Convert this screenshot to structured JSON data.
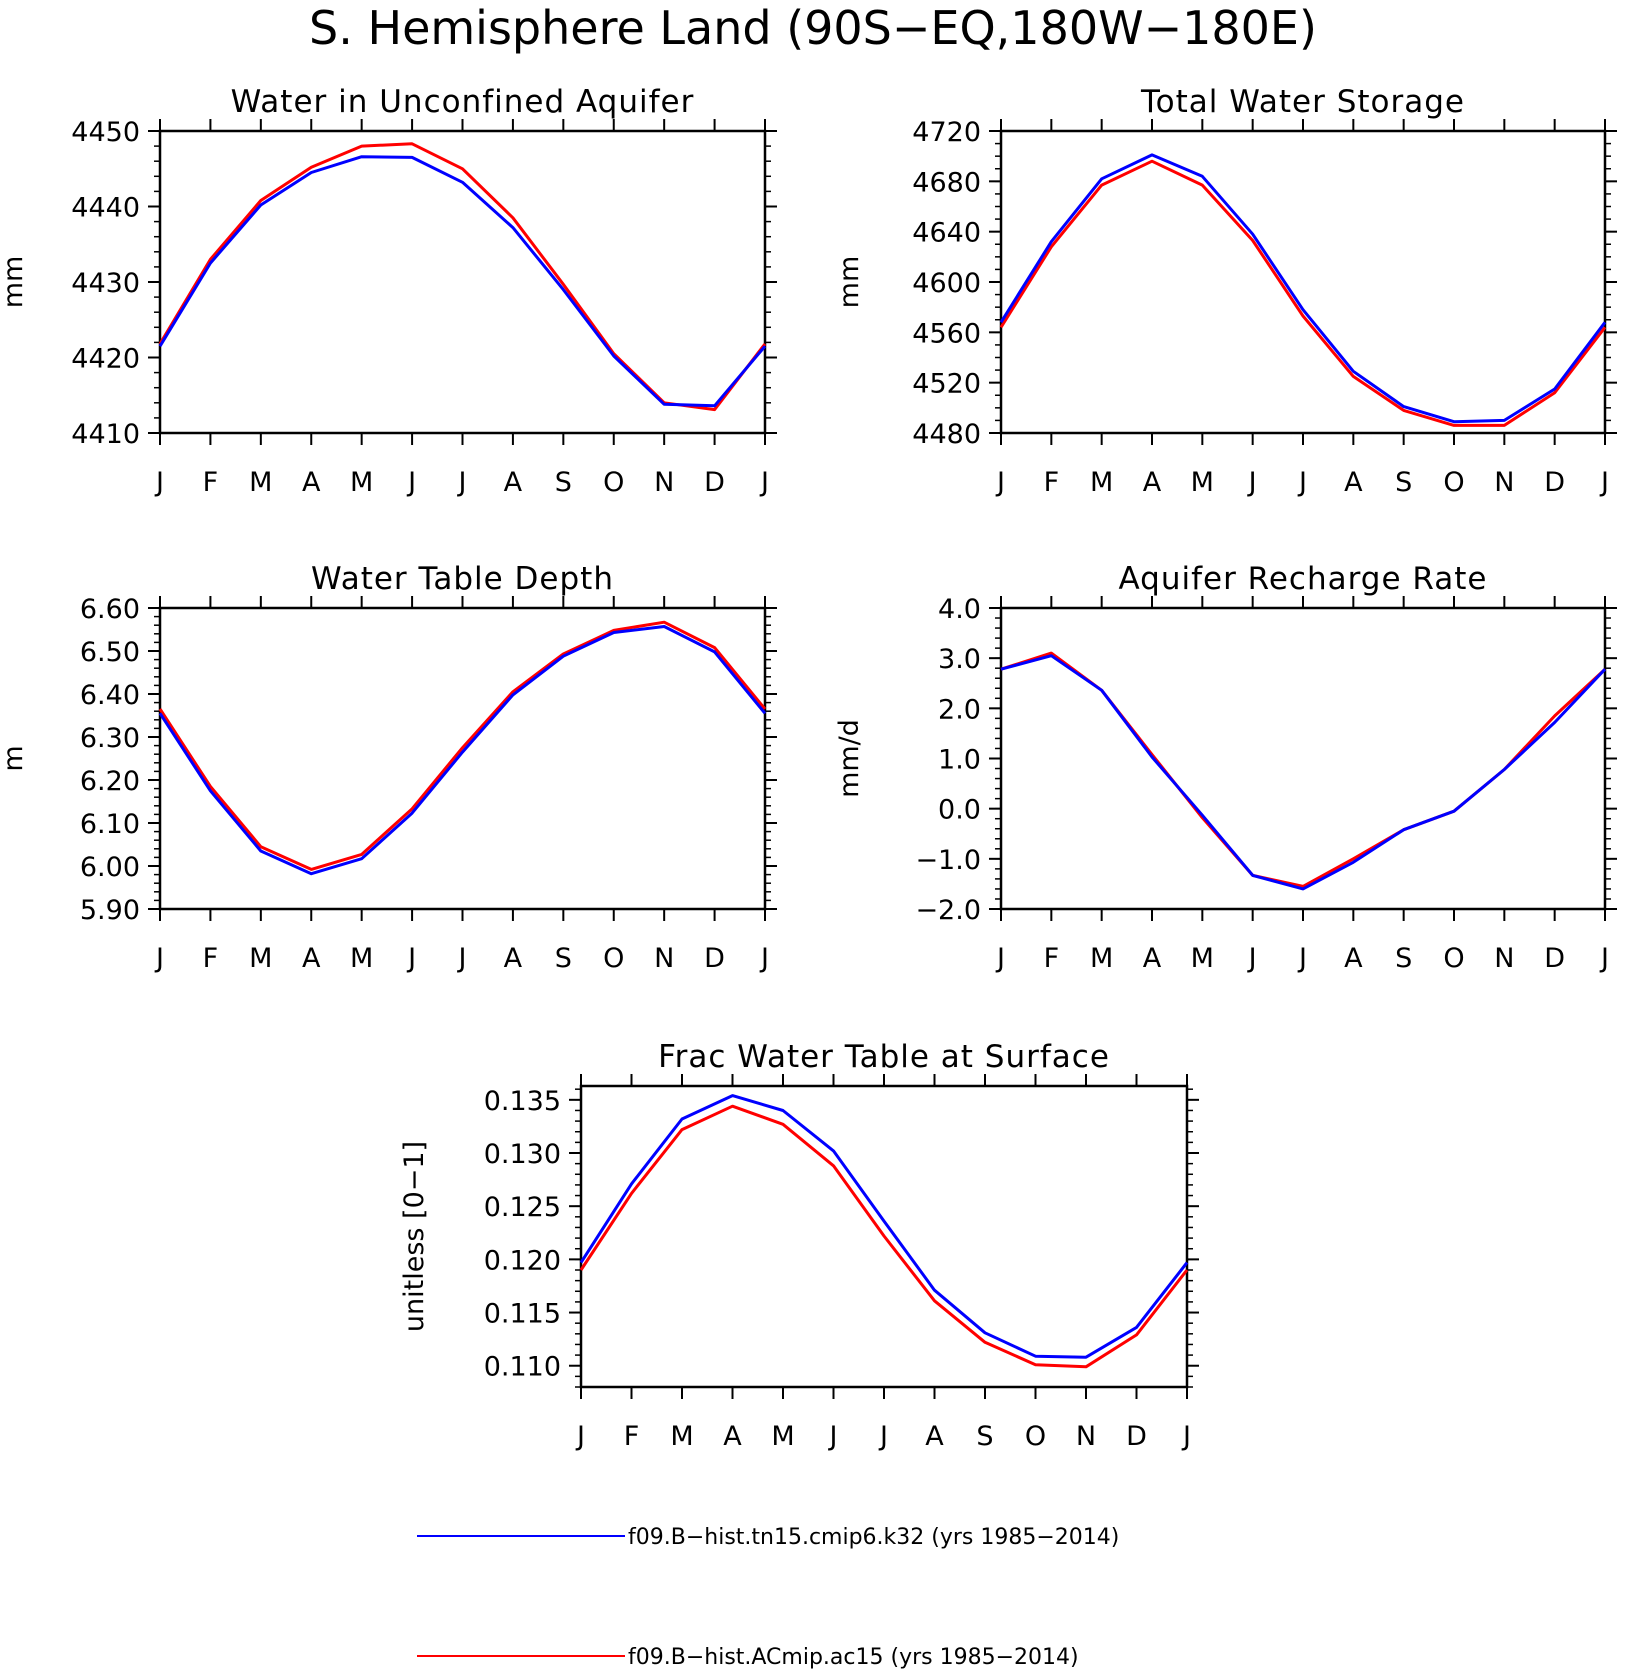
{
  "figure": {
    "title": "S. Hemisphere Land (90S−EQ,180W−180E)"
  },
  "legend": [
    {
      "label": "f09.B−hist.tn15.cmip6.k32 (yrs 1985−2014)",
      "color": "#0000ff"
    },
    {
      "label": "f09.B−hist.ACmip.ac15 (yrs 1985−2014)",
      "color": "#ff0000"
    }
  ],
  "chart_data": [
    {
      "type": "line",
      "title": "Water in Unconfined Aquifer",
      "ylabel": "mm",
      "xlabel": "",
      "categories": [
        "J",
        "F",
        "M",
        "A",
        "M",
        "J",
        "J",
        "A",
        "S",
        "O",
        "N",
        "D",
        "J"
      ],
      "ylim": [
        4410,
        4450
      ],
      "yticks": [
        "4410",
        "4420",
        "4430",
        "4440",
        "4450"
      ],
      "yminor": 5,
      "series": [
        {
          "color": "#ff0000",
          "values": [
            4421.8,
            4433.0,
            4440.8,
            4445.2,
            4448.0,
            4448.3,
            4445.0,
            4438.5,
            4429.7,
            4420.5,
            4414.0,
            4413.1,
            4421.8
          ]
        },
        {
          "color": "#0000ff",
          "values": [
            4421.5,
            4432.5,
            4440.2,
            4444.5,
            4446.6,
            4446.5,
            4443.2,
            4437.2,
            4429.0,
            4420.2,
            4413.8,
            4413.6,
            4421.5
          ]
        }
      ]
    },
    {
      "type": "line",
      "title": "Total Water Storage",
      "ylabel": "mm",
      "xlabel": "",
      "categories": [
        "J",
        "F",
        "M",
        "A",
        "M",
        "J",
        "J",
        "A",
        "S",
        "O",
        "N",
        "D",
        "J"
      ],
      "ylim": [
        4480,
        4720
      ],
      "yticks": [
        "4480",
        "4520",
        "4560",
        "4600",
        "4640",
        "4680",
        "4720"
      ],
      "yminor": 4,
      "series": [
        {
          "color": "#ff0000",
          "values": [
            4564,
            4628,
            4677,
            4696,
            4677,
            4633,
            4573,
            4525,
            4498,
            4486,
            4486,
            4512,
            4564
          ]
        },
        {
          "color": "#0000ff",
          "values": [
            4568,
            4632,
            4682,
            4701,
            4684,
            4638,
            4578,
            4529,
            4501,
            4489,
            4490,
            4515,
            4568
          ]
        }
      ]
    },
    {
      "type": "line",
      "title": "Water Table Depth",
      "ylabel": "m",
      "xlabel": "",
      "categories": [
        "J",
        "F",
        "M",
        "A",
        "M",
        "J",
        "J",
        "A",
        "S",
        "O",
        "N",
        "D",
        "J"
      ],
      "ylim": [
        5.9,
        6.6
      ],
      "yticks": [
        "5.90",
        "6.00",
        "6.10",
        "6.20",
        "6.30",
        "6.40",
        "6.50",
        "6.60"
      ],
      "yminor": 5,
      "series": [
        {
          "color": "#ff0000",
          "values": [
            6.365,
            6.185,
            6.045,
            5.992,
            6.027,
            6.133,
            6.275,
            6.405,
            6.493,
            6.548,
            6.567,
            6.508,
            6.365
          ]
        },
        {
          "color": "#0000ff",
          "values": [
            6.355,
            6.175,
            6.035,
            5.982,
            6.017,
            6.123,
            6.265,
            6.398,
            6.488,
            6.543,
            6.557,
            6.498,
            6.355
          ]
        }
      ]
    },
    {
      "type": "line",
      "title": "Aquifer Recharge Rate",
      "ylabel": "mm/d",
      "xlabel": "",
      "categories": [
        "J",
        "F",
        "M",
        "A",
        "M",
        "J",
        "J",
        "A",
        "S",
        "O",
        "N",
        "D",
        "J"
      ],
      "ylim": [
        -2.0,
        4.0
      ],
      "yticks": [
        "−2.0",
        "−1.0",
        "0.0",
        "1.0",
        "2.0",
        "3.0",
        "4.0"
      ],
      "yminor": 5,
      "series": [
        {
          "color": "#ff0000",
          "values": [
            2.78,
            3.1,
            2.36,
            1.08,
            -0.18,
            -1.33,
            -1.55,
            -1.0,
            -0.42,
            -0.05,
            0.78,
            1.85,
            2.78
          ]
        },
        {
          "color": "#0000ff",
          "values": [
            2.78,
            3.05,
            2.36,
            1.03,
            -0.13,
            -1.33,
            -1.6,
            -1.07,
            -0.42,
            -0.05,
            0.78,
            1.72,
            2.78
          ]
        }
      ]
    },
    {
      "type": "line",
      "title": "Frac Water Table at Surface",
      "ylabel": "unitless [0−1]",
      "xlabel": "",
      "categories": [
        "J",
        "F",
        "M",
        "A",
        "M",
        "J",
        "J",
        "A",
        "S",
        "O",
        "N",
        "D",
        "J"
      ],
      "ylim": [
        0.108,
        0.1363
      ],
      "yticks": [
        "0.110",
        "0.115",
        "0.120",
        "0.125",
        "0.130",
        "0.135"
      ],
      "ytickvals": [
        0.11,
        0.115,
        0.12,
        0.125,
        0.13,
        0.135
      ],
      "yminor": 5,
      "series": [
        {
          "color": "#ff0000",
          "values": [
            0.119,
            0.1262,
            0.1322,
            0.1344,
            0.1327,
            0.1288,
            0.1222,
            0.1161,
            0.1122,
            0.1101,
            0.1099,
            0.1129,
            0.119
          ]
        },
        {
          "color": "#0000ff",
          "values": [
            0.1197,
            0.1271,
            0.1332,
            0.1354,
            0.134,
            0.1302,
            0.1236,
            0.1171,
            0.1131,
            0.1109,
            0.1108,
            0.1136,
            0.1197
          ]
        }
      ]
    }
  ]
}
